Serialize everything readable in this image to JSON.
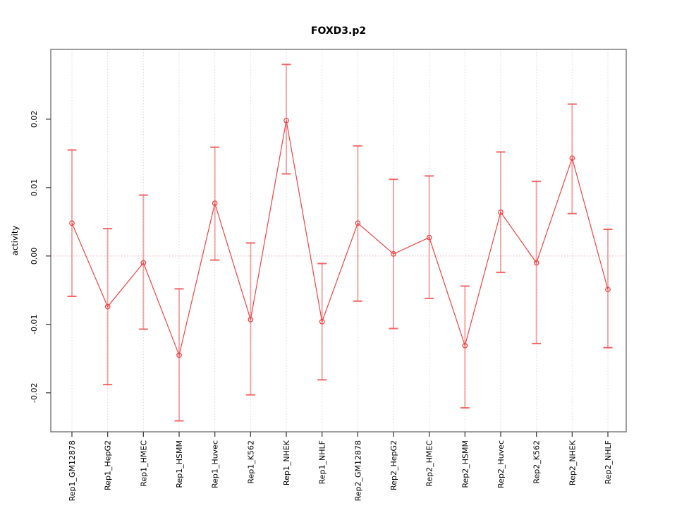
{
  "chart_data": {
    "type": "line",
    "title": "FOXD3.p2",
    "xlabel": "",
    "ylabel": "activity",
    "legend": "none",
    "grid": "vertical-dashed-per-category",
    "zero_line": true,
    "point_marker": "open-circle",
    "categories": [
      "Rep1_GM12878",
      "Rep1_HepG2",
      "Rep1_HMEC",
      "Rep1_HSMM",
      "Rep1_Huvec",
      "Rep1_K562",
      "Rep1_NHEK",
      "Rep1_NHLF",
      "Rep2_GM12878",
      "Rep2_HepG2",
      "Rep2_HMEC",
      "Rep2_HSMM",
      "Rep2_Huvec",
      "Rep2_K562",
      "Rep2_NHEK",
      "Rep2_NHLF"
    ],
    "series": [
      {
        "name": "activity",
        "values": [
          0.0048,
          -0.0074,
          -0.001,
          -0.0145,
          0.0077,
          -0.0093,
          0.0198,
          -0.0096,
          0.0048,
          0.0003,
          0.0027,
          -0.0131,
          0.0064,
          -0.001,
          0.0143,
          -0.0049
        ],
        "upper": [
          0.0155,
          0.004,
          0.0089,
          -0.0048,
          0.0159,
          0.0019,
          0.028,
          -0.0011,
          0.0161,
          0.0112,
          0.0117,
          -0.0044,
          0.0152,
          0.0109,
          0.0222,
          0.0039
        ],
        "lower": [
          -0.0059,
          -0.0188,
          -0.0107,
          -0.0241,
          -0.0006,
          -0.0203,
          0.012,
          -0.0181,
          -0.0066,
          -0.0106,
          -0.0062,
          -0.0222,
          -0.0024,
          -0.0128,
          0.0062,
          -0.0134
        ]
      }
    ],
    "yticks": [
      -0.02,
      -0.01,
      0,
      0.01,
      0.02
    ],
    "ytick_labels": [
      "-0.02",
      "-0.01",
      "0.00",
      "0.01",
      "0.02"
    ],
    "ylim": [
      -0.0257,
      0.0302
    ],
    "colors": {
      "line": "#f44444",
      "point": "#f44444",
      "errorbar": "#f44444",
      "zero_line": "#e8b6b6",
      "grid": "#d9d9d9",
      "box": "#7f7f7f",
      "tick": "#404040"
    }
  }
}
